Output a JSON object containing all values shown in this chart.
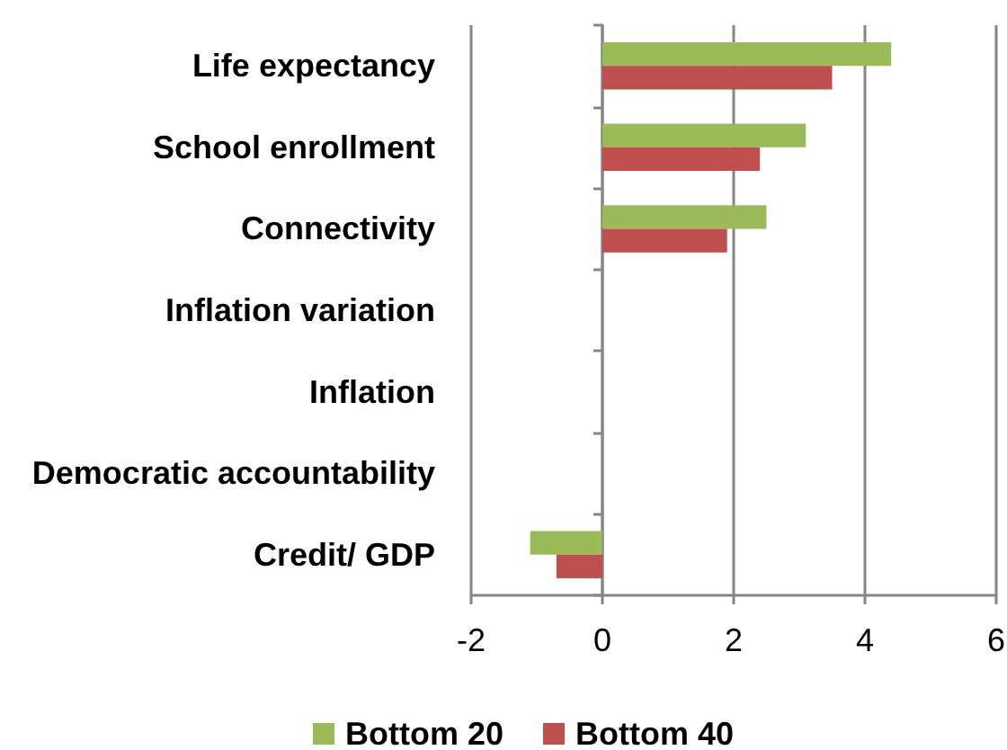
{
  "chart_data": {
    "type": "bar",
    "orientation": "horizontal",
    "categories": [
      "Life expectancy",
      "School enrollment",
      "Connectivity",
      "Inflation variation",
      "Inflation",
      "Democratic accountability",
      "Credit/ GDP"
    ],
    "series": [
      {
        "name": "Bottom 20",
        "color": "#9bbb59",
        "values": [
          4.4,
          3.1,
          2.5,
          null,
          null,
          null,
          -1.1
        ]
      },
      {
        "name": "Bottom 40",
        "color": "#c0504d",
        "values": [
          3.5,
          2.4,
          1.9,
          null,
          null,
          null,
          -0.7
        ]
      }
    ],
    "xlim": [
      -2,
      6
    ],
    "xticks": [
      -2,
      0,
      2,
      4,
      6
    ],
    "grid": "x",
    "legend": "bottom"
  }
}
